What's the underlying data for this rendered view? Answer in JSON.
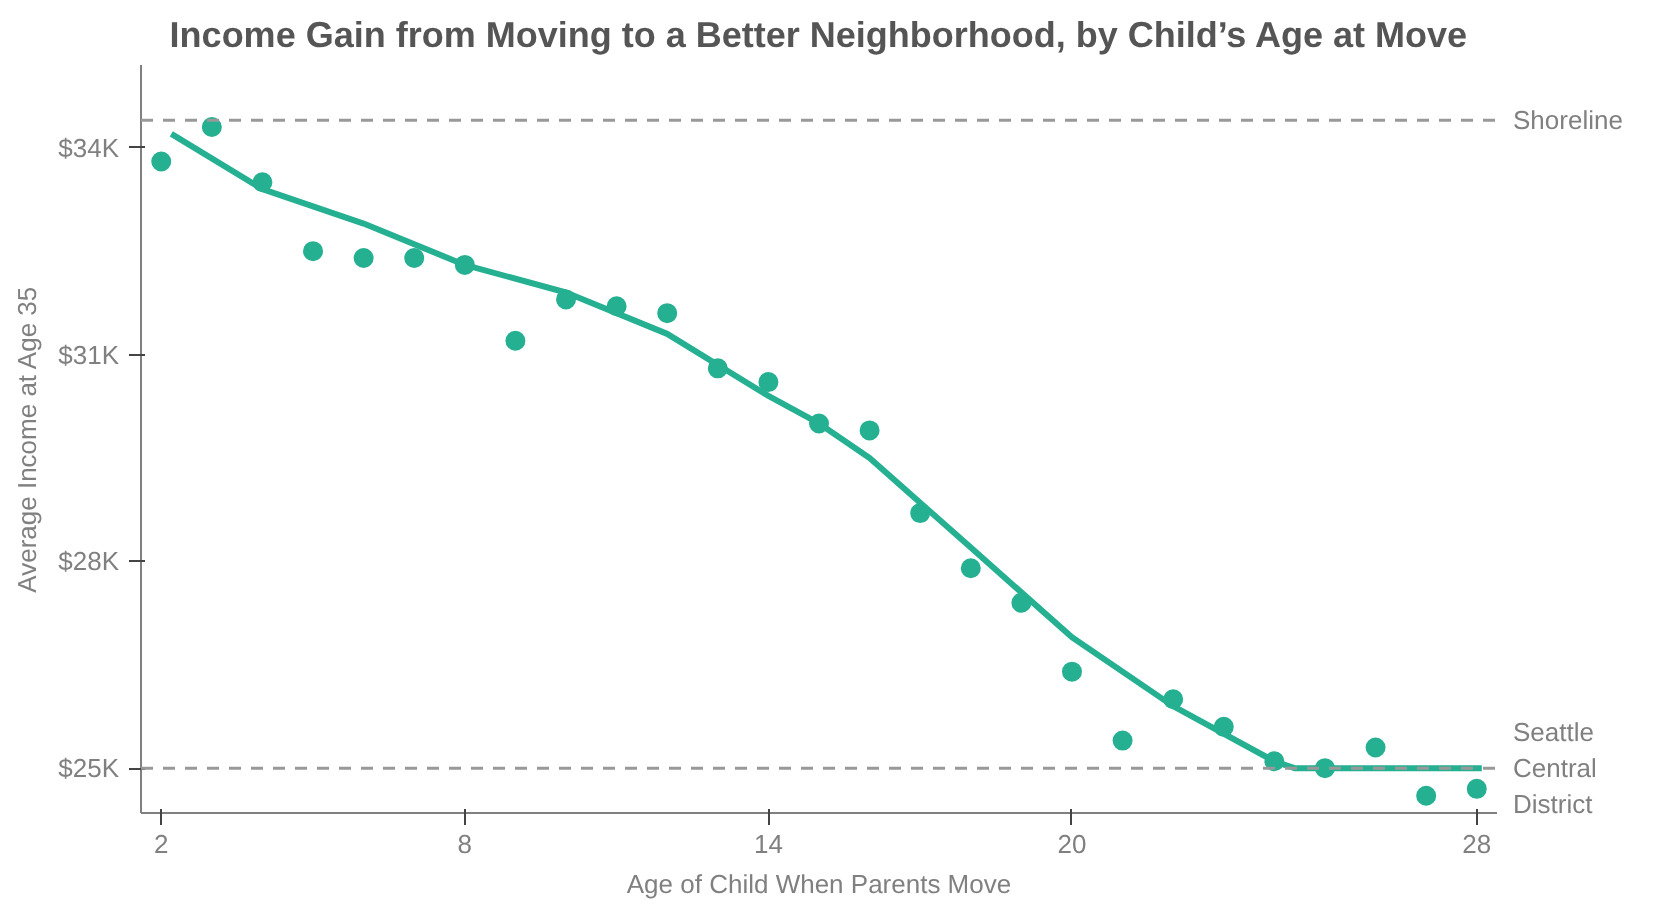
{
  "chart_data": {
    "type": "scatter",
    "title": "Income Gain from Moving to a Better Neighborhood, by Child’s Age at Move",
    "xlabel": "Age of Child When Parents Move",
    "ylabel": "Average Income at Age 35",
    "xlim": [
      1.6,
      28.4
    ],
    "ylim": [
      24.35,
      35.2
    ],
    "xticks": [
      2,
      8,
      14,
      20,
      28
    ],
    "yticks": [
      {
        "value": 25,
        "label": "$25K"
      },
      {
        "value": 28,
        "label": "$28K"
      },
      {
        "value": 31,
        "label": "$31K"
      },
      {
        "value": 34,
        "label": "$34K"
      }
    ],
    "grid": false,
    "series": [
      {
        "marker": "circle",
        "color": "#26b092",
        "x": [
          2,
          3,
          4,
          5,
          6,
          7,
          8,
          9,
          10,
          11,
          12,
          13,
          14,
          15,
          16,
          17,
          18,
          19,
          20,
          21,
          22,
          23,
          24,
          25,
          26,
          27,
          28
        ],
        "values": [
          33.8,
          34.3,
          33.5,
          32.5,
          32.4,
          32.4,
          32.3,
          31.2,
          31.8,
          31.7,
          31.6,
          30.8,
          30.6,
          30.0,
          29.9,
          28.7,
          27.9,
          27.4,
          26.4,
          25.4,
          26.0,
          25.6,
          25.1,
          25.0,
          25.3,
          24.6,
          24.7
        ]
      },
      {
        "type": "line",
        "color": "#26b092",
        "line_style": "solid",
        "x": [
          2.2,
          4,
          6,
          8,
          10,
          12,
          14,
          15,
          16,
          18,
          20,
          22,
          24,
          24.4,
          28.1
        ],
        "values": [
          34.2,
          33.4,
          32.9,
          32.3,
          31.9,
          31.3,
          30.4,
          30.0,
          29.5,
          28.2,
          26.9,
          25.9,
          25.1,
          25.0,
          25.0
        ]
      }
    ],
    "ref_lines": [
      {
        "axis": "y",
        "value": 34.4,
        "label": "Shoreline",
        "color": "#999999",
        "line_style": "dashed"
      },
      {
        "axis": "y",
        "value": 25.0,
        "label": "Seattle Central District",
        "color": "#999999",
        "line_style": "dashed"
      }
    ]
  }
}
